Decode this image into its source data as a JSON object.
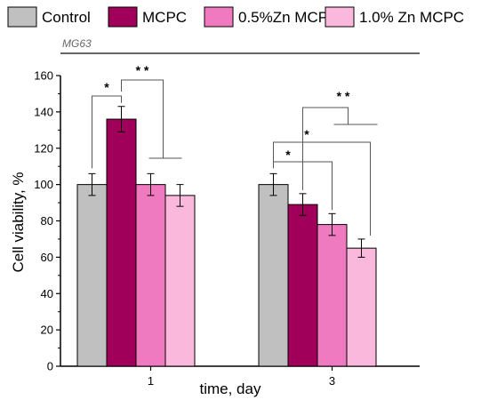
{
  "chart_data": {
    "type": "bar",
    "panel_label": "MG63",
    "xlabel": "time, day",
    "ylabel": "Cell viability, %",
    "categories": [
      "1",
      "3"
    ],
    "ylim": [
      0,
      160
    ],
    "yticks": [
      0,
      20,
      40,
      60,
      80,
      100,
      120,
      140,
      160
    ],
    "legend_position": "top",
    "series": [
      {
        "name": "Control",
        "color": "#c0c0c0",
        "values": [
          100,
          100
        ],
        "errors": [
          6,
          6
        ]
      },
      {
        "name": "MCPC",
        "color": "#a0005a",
        "values": [
          136,
          89
        ],
        "errors": [
          7,
          6
        ]
      },
      {
        "name": "0.5%Zn MCPC",
        "color": "#f07ac0",
        "values": [
          100,
          78
        ],
        "errors": [
          6,
          6
        ]
      },
      {
        "name": "1.0% Zn MCPC",
        "color": "#f9b8dc",
        "values": [
          94,
          65
        ],
        "errors": [
          6,
          5
        ]
      }
    ],
    "annotations": [
      {
        "category": "1",
        "from": "Control",
        "to": "MCPC",
        "label": "*"
      },
      {
        "category": "1",
        "from": "MCPC",
        "to": "0.5%Zn MCPC, 1.0% Zn MCPC",
        "label": "* *"
      },
      {
        "category": "3",
        "from": "Control",
        "to": "1.0% Zn MCPC",
        "label": "*"
      },
      {
        "category": "3",
        "from": "Control",
        "to": "0.5%Zn MCPC",
        "label": "*"
      },
      {
        "category": "3",
        "from": "MCPC",
        "to": "0.5%Zn MCPC, 1.0% Zn MCPC",
        "label": "* *"
      }
    ]
  }
}
